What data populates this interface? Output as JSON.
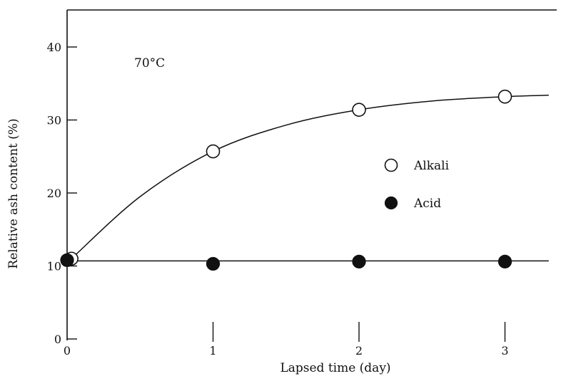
{
  "chart_data": {
    "type": "scatter",
    "title": "",
    "annotation": "70°C",
    "xlabel": "Lapsed time (day)",
    "ylabel": "Relative ash content (%)",
    "xlim": [
      0,
      3.3
    ],
    "ylim": [
      0,
      45
    ],
    "x_ticks": [
      0,
      1,
      2,
      3
    ],
    "y_ticks": [
      0,
      10,
      20,
      30,
      40
    ],
    "grid": false,
    "legend_placement": "right",
    "series": [
      {
        "name": "Alkali",
        "marker": "open-circle",
        "x": [
          0.03,
          1,
          2,
          3
        ],
        "y": [
          11,
          25.7,
          31.4,
          33.2
        ],
        "trend_curve": [
          [
            0.03,
            11
          ],
          [
            0.5,
            19.5
          ],
          [
            1,
            25.7
          ],
          [
            1.5,
            29.3
          ],
          [
            2,
            31.4
          ],
          [
            2.5,
            32.6
          ],
          [
            3,
            33.2
          ],
          [
            3.3,
            33.4
          ]
        ]
      },
      {
        "name": "Acid",
        "marker": "filled-circle",
        "x": [
          0,
          1,
          2,
          3
        ],
        "y": [
          10.8,
          10.3,
          10.6,
          10.6
        ],
        "trend_curve": [
          [
            0,
            10.7
          ],
          [
            3.3,
            10.7
          ]
        ]
      }
    ]
  }
}
